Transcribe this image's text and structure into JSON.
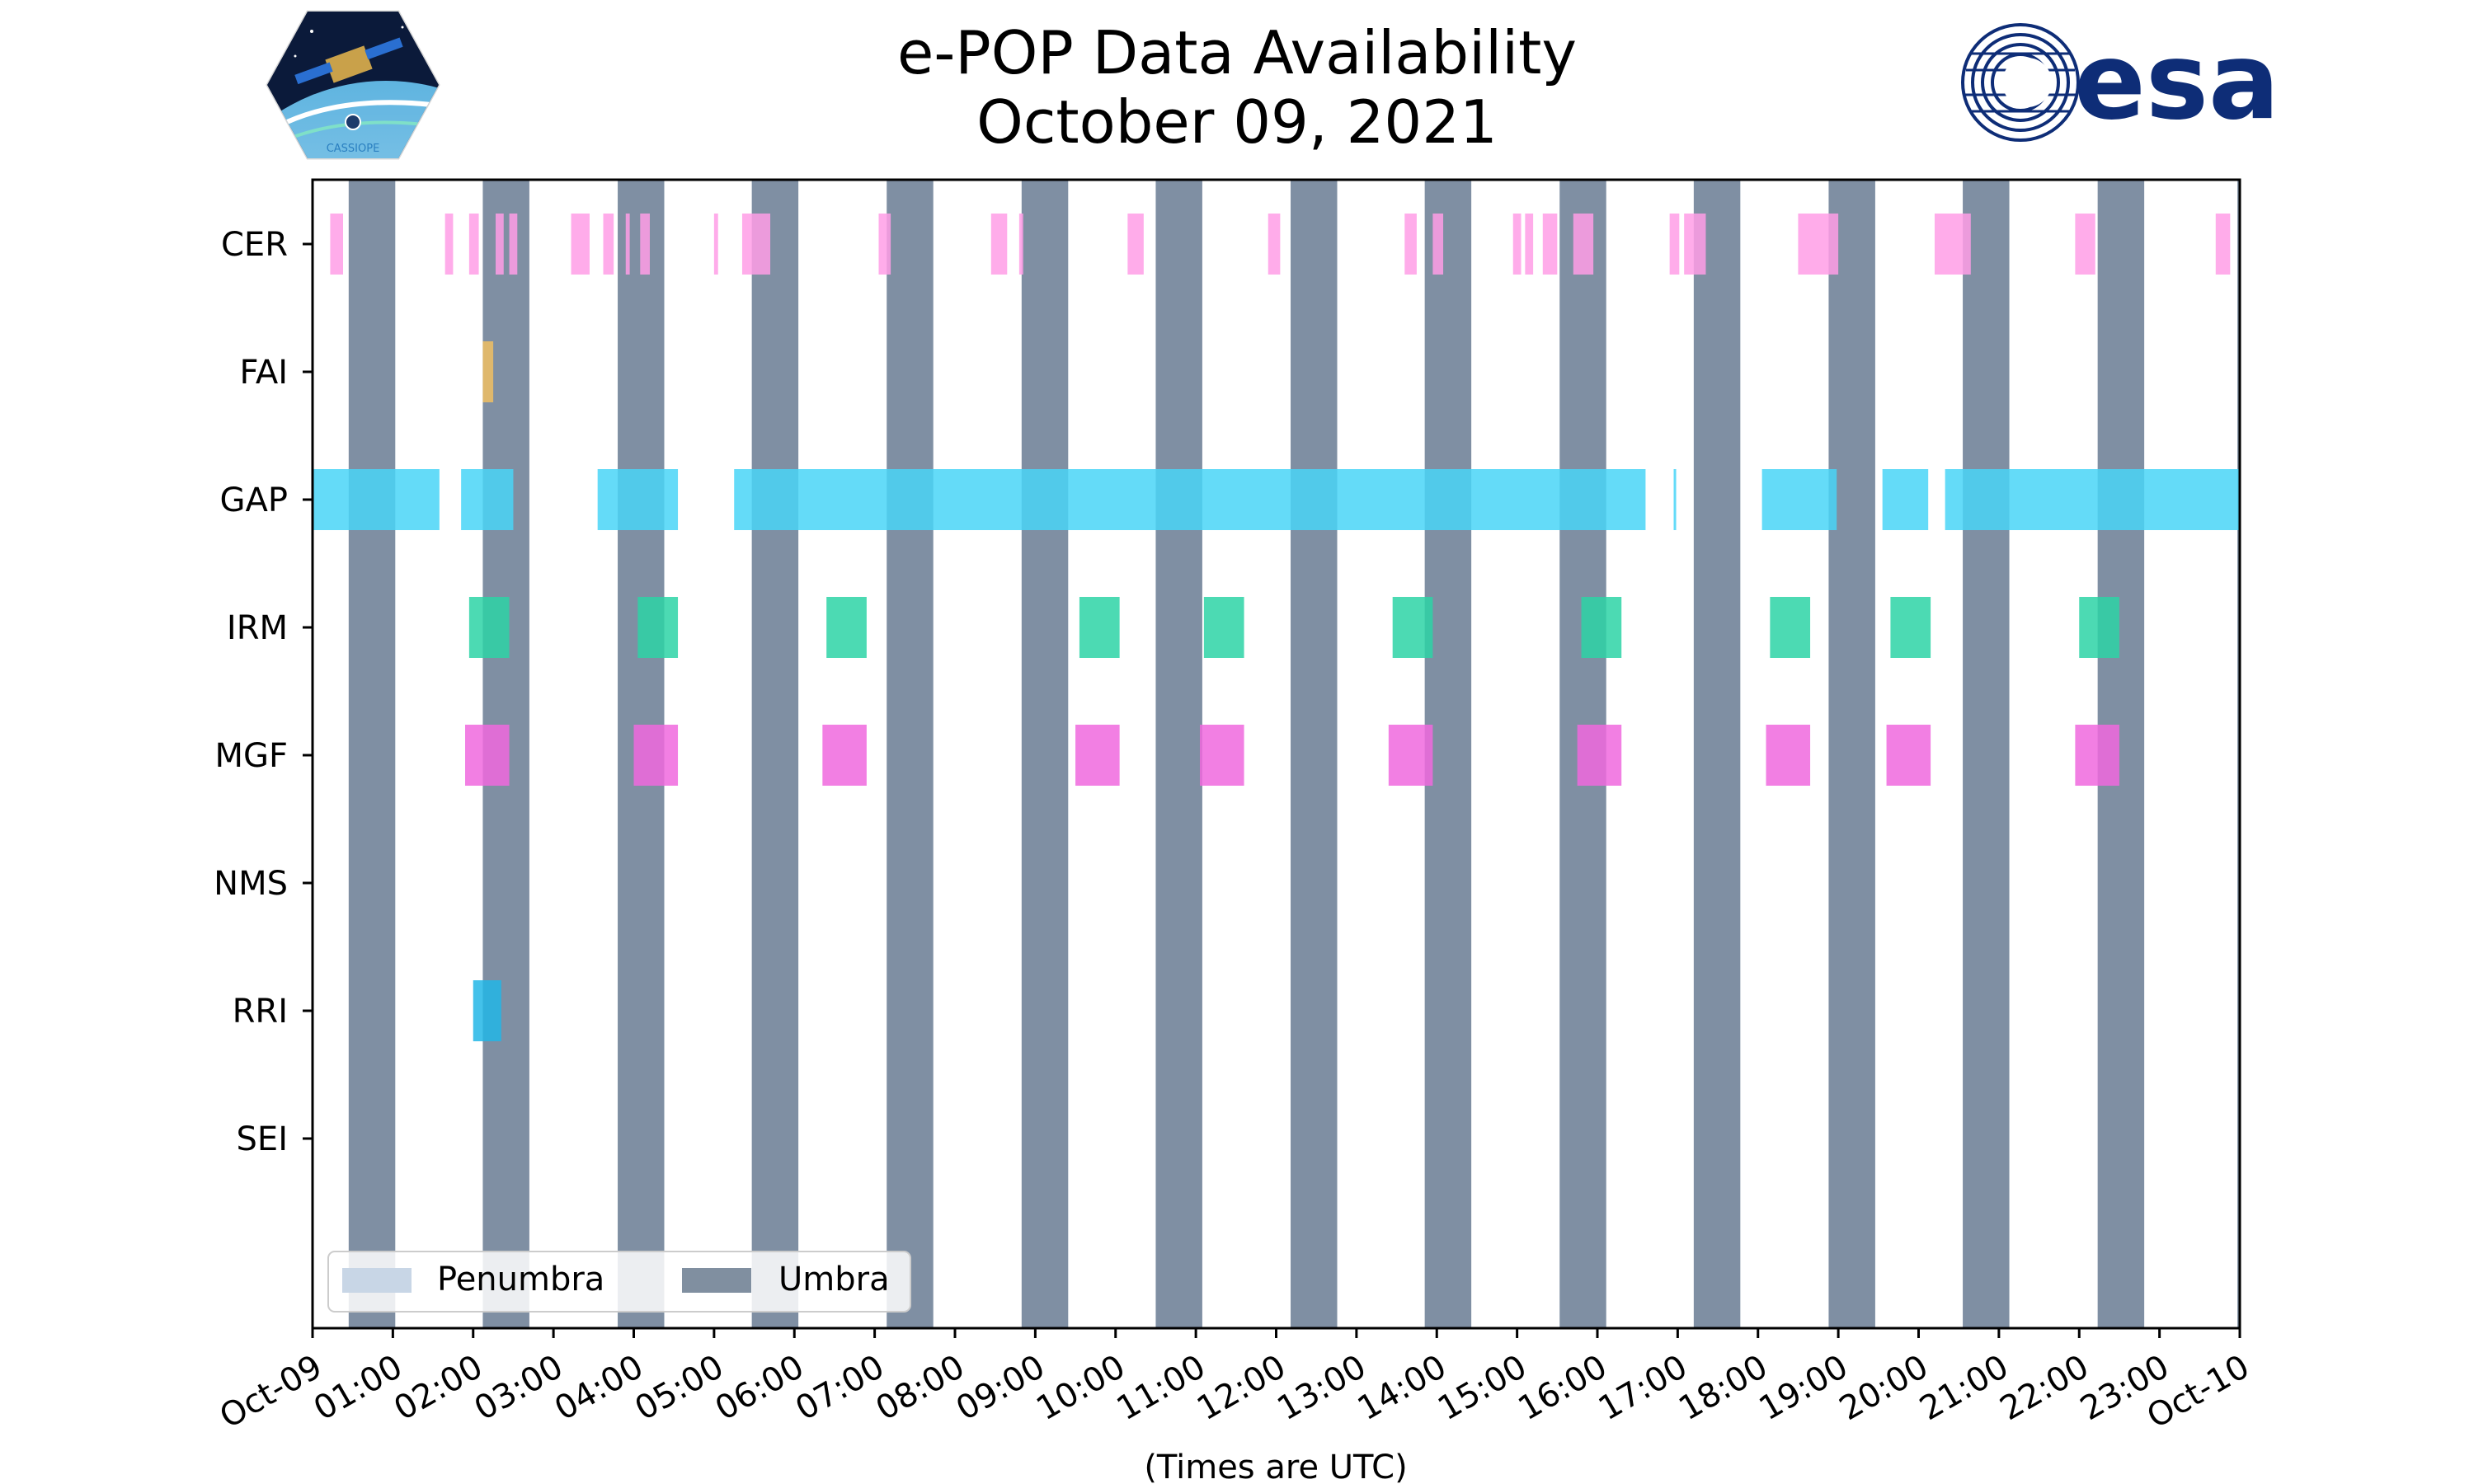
{
  "title": {
    "line1": "e-POP Data Availability",
    "line2": "October 09, 2021"
  },
  "logos": {
    "left": {
      "name": "cassiope-mission-logo",
      "text": "CASSIOPE"
    },
    "right": {
      "name": "esa-logo",
      "text": "esa",
      "color": "#0e2d77"
    }
  },
  "chart_data": {
    "type": "timeline",
    "xlabel": "(Times are UTC)",
    "x_tick_labels": [
      "Oct-09",
      "01:00",
      "02:00",
      "03:00",
      "04:00",
      "05:00",
      "06:00",
      "07:00",
      "08:00",
      "09:00",
      "10:00",
      "11:00",
      "12:00",
      "13:00",
      "14:00",
      "15:00",
      "16:00",
      "17:00",
      "18:00",
      "19:00",
      "20:00",
      "21:00",
      "22:00",
      "23:00",
      "Oct-10"
    ],
    "xlim_hours": [
      0,
      24
    ],
    "categories": [
      "CER",
      "FAI",
      "GAP",
      "IRM",
      "MGF",
      "NMS",
      "RRI",
      "SEI"
    ],
    "legend": {
      "placement": "lower-left",
      "entries": [
        {
          "label": "Penumbra",
          "color": "#c8d6e6"
        },
        {
          "label": "Umbra",
          "color": "#808fa0"
        }
      ]
    },
    "umbra_color": "#7f8fa3",
    "umbra_intervals": [
      [
        0.45,
        1.03
      ],
      [
        2.12,
        2.7
      ],
      [
        3.8,
        4.38
      ],
      [
        5.47,
        6.05
      ],
      [
        7.15,
        7.73
      ],
      [
        8.83,
        9.41
      ],
      [
        10.5,
        11.08
      ],
      [
        12.18,
        12.76
      ],
      [
        13.85,
        14.43
      ],
      [
        15.53,
        16.11
      ],
      [
        17.2,
        17.78
      ],
      [
        18.88,
        19.46
      ],
      [
        20.55,
        21.13
      ],
      [
        22.23,
        22.81
      ],
      [
        23.97,
        24.0
      ]
    ],
    "series": [
      {
        "name": "CER",
        "color": "#ff9de6",
        "intervals": [
          [
            0.22,
            0.38
          ],
          [
            1.65,
            1.75
          ],
          [
            1.95,
            2.07
          ],
          [
            2.28,
            2.38
          ],
          [
            2.45,
            2.55
          ],
          [
            3.22,
            3.45
          ],
          [
            3.62,
            3.75
          ],
          [
            3.9,
            3.95
          ],
          [
            4.08,
            4.2
          ],
          [
            5.0,
            5.05
          ],
          [
            5.35,
            5.7
          ],
          [
            7.05,
            7.2
          ],
          [
            8.45,
            8.65
          ],
          [
            8.8,
            8.85
          ],
          [
            10.15,
            10.35
          ],
          [
            11.9,
            12.05
          ],
          [
            13.6,
            13.75
          ],
          [
            13.95,
            14.08
          ],
          [
            14.95,
            15.05
          ],
          [
            15.1,
            15.2
          ],
          [
            15.32,
            15.5
          ],
          [
            15.7,
            15.95
          ],
          [
            16.9,
            17.02
          ],
          [
            17.08,
            17.35
          ],
          [
            18.5,
            19.0
          ],
          [
            20.2,
            20.65
          ],
          [
            21.95,
            22.2
          ],
          [
            23.7,
            23.88
          ]
        ]
      },
      {
        "name": "FAI",
        "color": "#f0c063",
        "intervals": [
          [
            2.12,
            2.25
          ]
        ]
      },
      {
        "name": "GAP",
        "color": "#49d5f7",
        "intervals": [
          [
            0.0,
            1.58
          ],
          [
            1.85,
            2.5
          ],
          [
            3.55,
            4.55
          ],
          [
            5.25,
            16.6
          ],
          [
            16.95,
            16.98
          ],
          [
            18.05,
            18.98
          ],
          [
            19.55,
            20.12
          ],
          [
            20.33,
            24.0
          ]
        ]
      },
      {
        "name": "IRM",
        "color": "#2dd4a6",
        "intervals": [
          [
            1.95,
            2.45
          ],
          [
            4.05,
            4.55
          ],
          [
            6.4,
            6.9
          ],
          [
            9.55,
            10.05
          ],
          [
            11.1,
            11.6
          ],
          [
            13.45,
            13.95
          ],
          [
            15.8,
            16.3
          ],
          [
            18.15,
            18.65
          ],
          [
            19.65,
            20.15
          ],
          [
            22.0,
            22.5
          ]
        ]
      },
      {
        "name": "MGF",
        "color": "#f068de",
        "intervals": [
          [
            1.9,
            2.45
          ],
          [
            4.0,
            4.55
          ],
          [
            6.35,
            6.9
          ],
          [
            9.5,
            10.05
          ],
          [
            11.05,
            11.6
          ],
          [
            13.4,
            13.95
          ],
          [
            15.75,
            16.3
          ],
          [
            18.1,
            18.65
          ],
          [
            19.6,
            20.15
          ],
          [
            21.95,
            22.5
          ]
        ]
      },
      {
        "name": "NMS",
        "color": "#888888",
        "intervals": []
      },
      {
        "name": "RRI",
        "color": "#22b6e6",
        "intervals": [
          [
            2.0,
            2.35
          ]
        ]
      },
      {
        "name": "SEI",
        "color": "#888888",
        "intervals": []
      }
    ]
  }
}
